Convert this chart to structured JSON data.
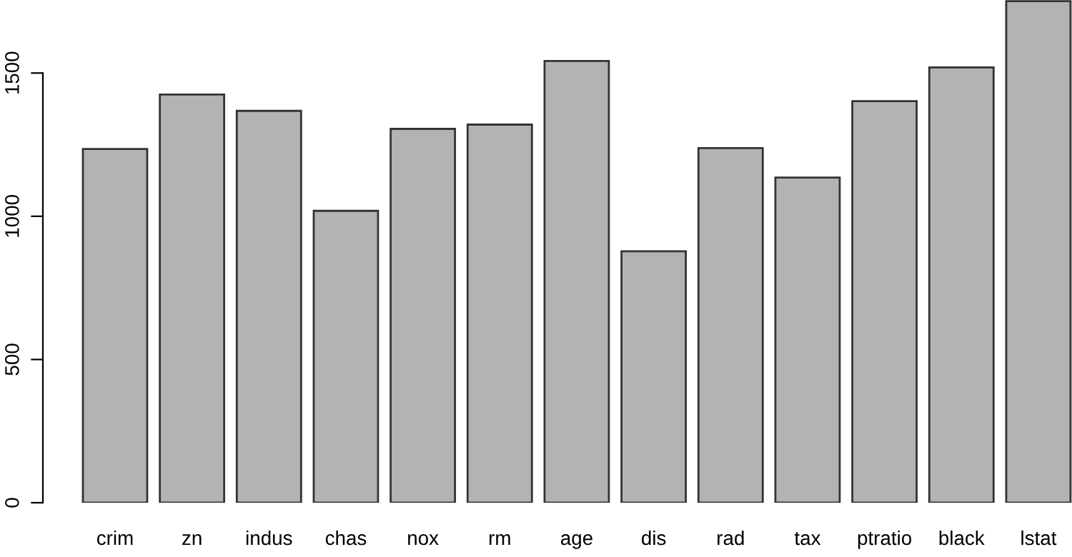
{
  "chart_data": {
    "type": "bar",
    "categories": [
      "crim",
      "zn",
      "indus",
      "chas",
      "nox",
      "rm",
      "age",
      "dis",
      "rad",
      "tax",
      "ptratio",
      "black",
      "lstat"
    ],
    "values": [
      1235,
      1425,
      1368,
      1019,
      1305,
      1320,
      1542,
      878,
      1238,
      1135,
      1402,
      1520,
      1751
    ],
    "color": "#b3b3b3",
    "ylim": [
      0,
      1755
    ],
    "yticks": [
      0,
      500,
      1000,
      1500
    ],
    "grid": false
  }
}
